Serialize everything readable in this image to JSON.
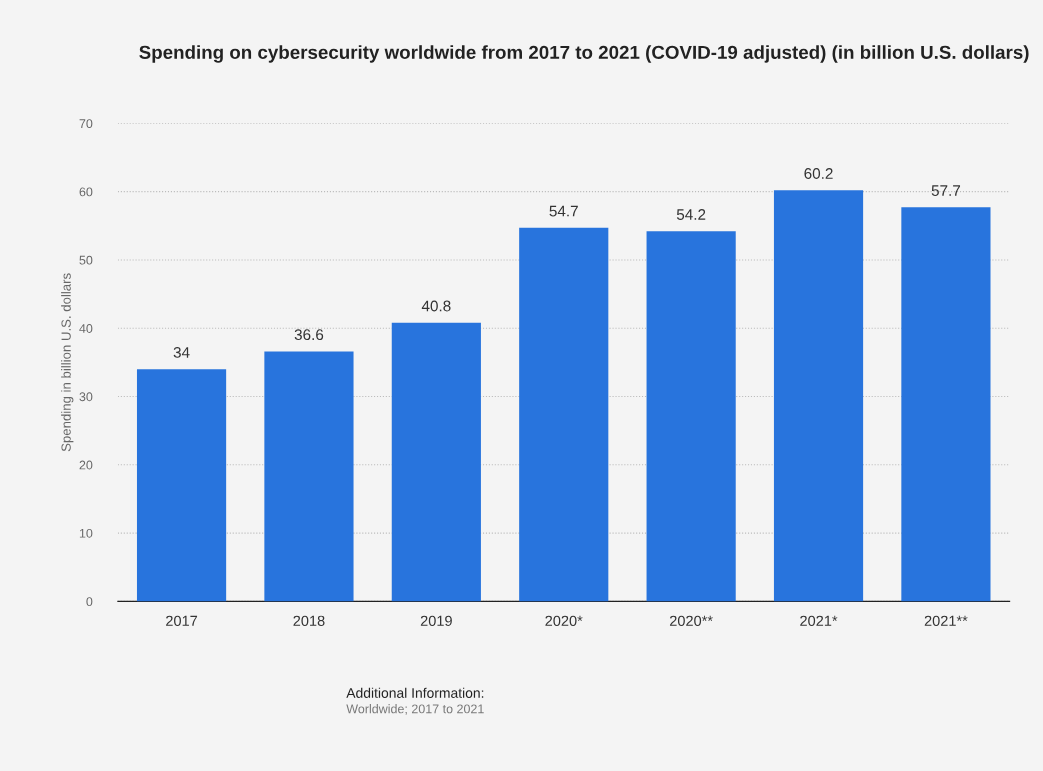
{
  "chart_data": {
    "type": "bar",
    "title": "Spending on cybersecurity worldwide from 2017 to 2021 (COVID-19 adjusted) (in billion U.S. dollars)",
    "ylabel": "Spending in billion U.S. dollars",
    "categories": [
      "2017",
      "2018",
      "2019",
      "2020*",
      "2020**",
      "2021*",
      "2021**"
    ],
    "values": [
      34,
      36.6,
      40.8,
      54.7,
      54.2,
      60.2,
      57.7
    ],
    "color": "#2874dd",
    "ylim": [
      0,
      70
    ],
    "yticks": [
      0,
      10,
      20,
      30,
      40,
      50,
      60,
      70
    ],
    "grid": "y",
    "data_labels": true,
    "legend": false,
    "annotations": [
      "Additional Information:",
      "Worldwide; 2017 to 2021"
    ]
  }
}
